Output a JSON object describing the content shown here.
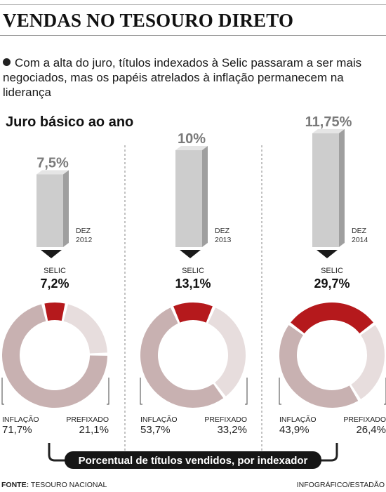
{
  "header": {
    "title": "VENDAS NO TESOURO DIRETO",
    "subtitle": "Com a alta do juro, títulos indexados à Selic passaram a ser mais negociados, mas os papéis atrelados à inflação permanecem na liderança"
  },
  "section_label": "Juro básico ao ano",
  "footer": {
    "source_label": "FONTE:",
    "source_value": "TESOURO NACIONAL",
    "credit": "INFOGRÁFICO/ESTADÃO"
  },
  "caption": "Porcentual de títulos vendidos, por  indexador",
  "colors": {
    "selic": "#b5191c",
    "inflacao": "#c8b1b1",
    "prefixado": "#e7dddd",
    "bar_front": "#cdcdcd",
    "bar_side": "#9f9f9f",
    "bar_top": "#e5e5e5",
    "divider": "#9a9a9a"
  },
  "chart_data": [
    {
      "type": "bar",
      "title": "Juro básico ao ano",
      "categories": [
        "DEZ 2012",
        "DEZ 2013",
        "DEZ 2014"
      ],
      "category_lines": [
        [
          "DEZ",
          "2012"
        ],
        [
          "DEZ",
          "2013"
        ],
        [
          "DEZ",
          "2014"
        ]
      ],
      "values": [
        7.5,
        10,
        11.75
      ],
      "value_labels": [
        "7,5%",
        "10%",
        "11,75%"
      ]
    },
    {
      "type": "pie",
      "title": "Porcentual de títulos vendidos, por  indexador",
      "categories": [
        "SELIC",
        "INFLAÇÃO",
        "PREFIXADO"
      ],
      "series": [
        {
          "name": "DEZ 2012",
          "values": [
            7.2,
            71.7,
            21.1
          ],
          "labels": [
            "7,2%",
            "71,7%",
            "21,1%"
          ]
        },
        {
          "name": "DEZ 2013",
          "values": [
            13.1,
            53.7,
            33.2
          ],
          "labels": [
            "13,1%",
            "53,7%",
            "33,2%"
          ]
        },
        {
          "name": "DEZ 2014",
          "values": [
            29.7,
            43.9,
            26.4
          ],
          "labels": [
            "29,7%",
            "43,9%",
            "26,4%"
          ]
        }
      ]
    }
  ]
}
